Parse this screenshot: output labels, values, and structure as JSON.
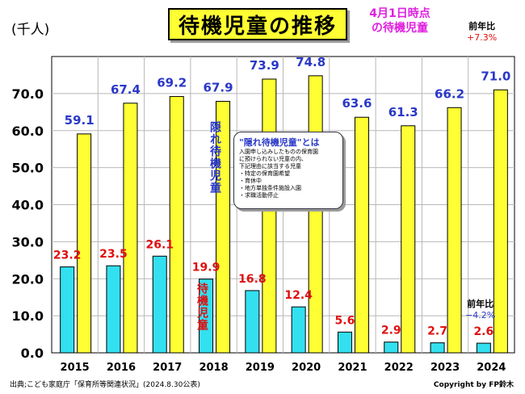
{
  "title": "待機児童の推移",
  "subtitle_line1": "4月1日時点",
  "subtitle_line2": "の待機児童",
  "unit_label": "(千人)",
  "yoy_top": {
    "label": "前年比",
    "value": "+7.3%"
  },
  "yoy_bottom": {
    "label": "前年比",
    "value": "−4.2%"
  },
  "hidden_label": "隠れ待機児童",
  "waiting_label": "待機児童",
  "note": {
    "title": "\"隠れ待機児童\"とは",
    "lines": [
      "入園申し込みしたものの保育園",
      "に預けられない児童の内、",
      "下記理由に該当する児童"
    ],
    "items": [
      "・特定の保育園希望",
      "・育休中",
      "・地方単独条件施設入園",
      "・求職活動停止"
    ]
  },
  "source": "出典;こども家庭庁「保育所等関連状況」(2024.8.30公表)",
  "copyright": "Copyright by FP鈴木",
  "colors": {
    "hidden": "#ffff33",
    "waiting": "#33e0f0",
    "hidden_label": "#2a38c8",
    "waiting_label": "#e01010",
    "subtitle": "#e020e0",
    "yoy_top": "#e01010",
    "yoy_bottom": "#2a38c8"
  },
  "chart_data": {
    "type": "bar",
    "categories": [
      "2015",
      "2016",
      "2017",
      "2018",
      "2019",
      "2020",
      "2021",
      "2022",
      "2023",
      "2024"
    ],
    "series": [
      {
        "values": [
          23.2,
          23.5,
          26.1,
          19.9,
          16.8,
          12.4,
          5.6,
          2.9,
          2.7,
          2.6
        ]
      },
      {
        "values": [
          59.1,
          67.4,
          69.2,
          67.9,
          73.9,
          74.8,
          63.6,
          61.3,
          66.2,
          71.0
        ]
      }
    ],
    "ylim": [
      0,
      80
    ],
    "yticks": [
      "0.0",
      "10.0",
      "20.0",
      "30.0",
      "40.0",
      "50.0",
      "60.0",
      "70.0"
    ],
    "grid": true,
    "grid_color": "#b8b8b8"
  }
}
